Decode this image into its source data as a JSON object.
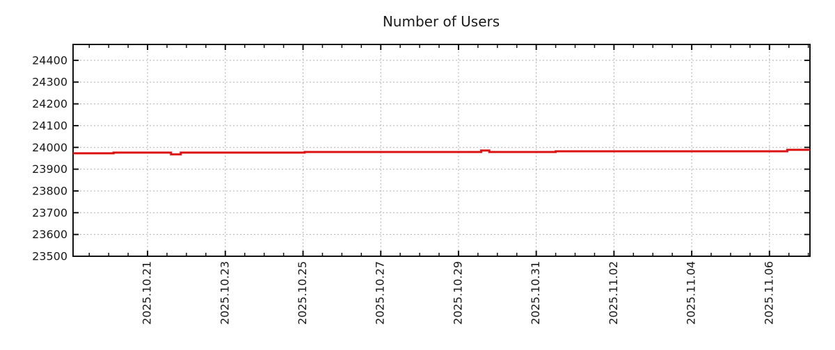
{
  "chart_data": {
    "type": "line",
    "title": "Number of Users",
    "legend": null,
    "style": {
      "line_color": "#dc1313",
      "grid_color": "#b0b0b0",
      "axis_color": "#111111",
      "text_color": "#1a1a1a",
      "background": "#ffffff",
      "line_width": 3,
      "grid": true
    },
    "x_axis": {
      "start": "2025-10-19 02:00",
      "end": "2025-11-07 01:00",
      "minor_tick_hours": 12,
      "label_rotation_deg": -90,
      "major_ticks": [
        {
          "t": "2025-10-21 00:00",
          "label": "2025.10.21"
        },
        {
          "t": "2025-10-23 00:00",
          "label": "2025.10.23"
        },
        {
          "t": "2025-10-25 00:00",
          "label": "2025.10.25"
        },
        {
          "t": "2025-10-27 00:00",
          "label": "2025.10.27"
        },
        {
          "t": "2025-10-29 00:00",
          "label": "2025.10.29"
        },
        {
          "t": "2025-10-31 00:00",
          "label": "2025.10.31"
        },
        {
          "t": "2025-11-02 00:00",
          "label": "2025.11.02"
        },
        {
          "t": "2025-11-04 00:00",
          "label": "2025.11.04"
        },
        {
          "t": "2025-11-06 00:00",
          "label": "2025.11.06"
        }
      ]
    },
    "y_axis": {
      "min": 23500,
      "max": 24473,
      "ticks": [
        23500,
        23600,
        23700,
        23800,
        23900,
        24000,
        24100,
        24200,
        24300,
        24400
      ]
    },
    "series": [
      {
        "name": "number-of-users",
        "mode": "step-after",
        "points": [
          [
            "2025-10-19 02:00",
            23973
          ],
          [
            "2025-10-20 03:00",
            23976
          ],
          [
            "2025-10-21 14:30",
            23968
          ],
          [
            "2025-10-21 20:30",
            23976
          ],
          [
            "2025-10-25 01:00",
            23979
          ],
          [
            "2025-10-29 14:00",
            23986
          ],
          [
            "2025-10-29 19:00",
            23979
          ],
          [
            "2025-10-31 12:00",
            23982
          ],
          [
            "2025-11-06 11:00",
            23989
          ],
          [
            "2025-11-07 01:00",
            23989
          ]
        ]
      }
    ]
  }
}
